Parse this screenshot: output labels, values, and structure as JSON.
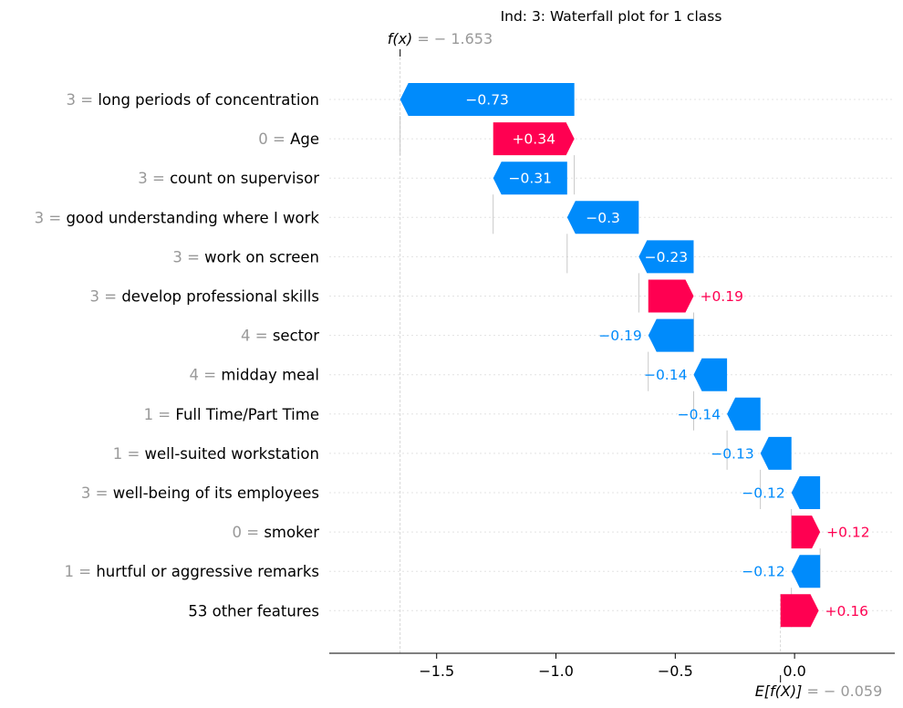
{
  "chart_data": {
    "type": "waterfall",
    "title": "Ind: 3: Waterfall plot for 1 class",
    "fx": {
      "label": "f(x)",
      "value_text": "= − 1.653",
      "value": -1.653
    },
    "base": {
      "label": "E[f(X)]",
      "value_text": "= − 0.059",
      "value": -0.059
    },
    "xlim": [
      -1.95,
      0.42
    ],
    "xticks": [
      {
        "value": -1.5,
        "label": "−1.5"
      },
      {
        "value": -1.0,
        "label": "−1.0"
      },
      {
        "value": -0.5,
        "label": "−0.5"
      },
      {
        "value": 0.0,
        "label": "0.0"
      }
    ],
    "colors": {
      "negative": "#008bfb",
      "positive": "#ff0051",
      "grid": "#cccccc",
      "prefix": "#999999"
    },
    "rows": [
      {
        "prefix": "3 =",
        "feature": "long periods of concentration",
        "start": -0.923,
        "value": -0.73,
        "label": "−0.73"
      },
      {
        "prefix": "0 =",
        "feature": "Age",
        "start": -1.263,
        "value": 0.34,
        "label": "+0.34"
      },
      {
        "prefix": "3 =",
        "feature": "count on supervisor",
        "start": -0.953,
        "value": -0.31,
        "label": "−0.31"
      },
      {
        "prefix": "3 =",
        "feature": "good understanding where I work",
        "start": -0.653,
        "value": -0.3,
        "label": "−0.3"
      },
      {
        "prefix": "3 =",
        "feature": "work on screen",
        "start": -0.423,
        "value": -0.23,
        "label": "−0.23"
      },
      {
        "prefix": "3 =",
        "feature": "develop professional skills",
        "start": -0.613,
        "value": 0.19,
        "label": "+0.19"
      },
      {
        "prefix": "4 =",
        "feature": "sector",
        "start": -0.423,
        "value": -0.19,
        "label": "−0.19"
      },
      {
        "prefix": "4 =",
        "feature": "midday meal",
        "start": -0.283,
        "value": -0.14,
        "label": "−0.14"
      },
      {
        "prefix": "1 =",
        "feature": "Full Time/Part Time",
        "start": -0.143,
        "value": -0.14,
        "label": "−0.14"
      },
      {
        "prefix": "1 =",
        "feature": "well-suited workstation",
        "start": -0.013,
        "value": -0.13,
        "label": "−0.13"
      },
      {
        "prefix": "3 =",
        "feature": "well-being of its employees",
        "start": 0.107,
        "value": -0.12,
        "label": "−0.12"
      },
      {
        "prefix": "0 =",
        "feature": "smoker",
        "start": -0.013,
        "value": 0.12,
        "label": "+0.12"
      },
      {
        "prefix": "1 =",
        "feature": "hurtful or aggressive remarks",
        "start": 0.107,
        "value": -0.12,
        "label": "−0.12"
      },
      {
        "prefix": "",
        "feature": "53 other features",
        "start": -0.059,
        "value": 0.16,
        "label": "+0.16"
      }
    ]
  }
}
